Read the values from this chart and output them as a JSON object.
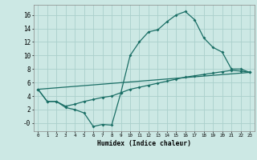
{
  "xlabel": "Humidex (Indice chaleur)",
  "bg_color": "#cce8e4",
  "grid_color": "#aad0cc",
  "line_color": "#1a6e65",
  "xlim": [
    -0.5,
    23.5
  ],
  "ylim": [
    -1.2,
    17.5
  ],
  "yticks": [
    0,
    2,
    4,
    6,
    8,
    10,
    12,
    14,
    16
  ],
  "ytick_labels": [
    "-0",
    "2",
    "4",
    "6",
    "8",
    "10",
    "12",
    "14",
    "16"
  ],
  "series1_x": [
    0,
    1,
    2,
    3,
    4,
    5,
    6,
    7,
    8,
    9,
    10,
    11,
    12,
    13,
    14,
    15,
    16,
    17,
    18,
    19,
    20,
    21,
    22,
    23
  ],
  "series1_y": [
    5.0,
    3.2,
    3.2,
    2.3,
    2.0,
    1.5,
    -0.5,
    -0.2,
    -0.3,
    4.5,
    10.0,
    12.0,
    13.5,
    13.8,
    15.0,
    16.0,
    16.5,
    15.3,
    12.6,
    11.2,
    10.5,
    8.0,
    8.0,
    7.5
  ],
  "series2_x": [
    0,
    23
  ],
  "series2_y": [
    5.0,
    7.5
  ],
  "series3_x": [
    0,
    1,
    2,
    3,
    4,
    5,
    6,
    7,
    8,
    9,
    10,
    11,
    12,
    13,
    14,
    15,
    16,
    17,
    18,
    19,
    20,
    21,
    22,
    23
  ],
  "series3_y": [
    5.0,
    3.2,
    3.2,
    2.5,
    2.8,
    3.2,
    3.5,
    3.8,
    4.0,
    4.5,
    5.0,
    5.3,
    5.6,
    5.9,
    6.2,
    6.5,
    6.8,
    7.0,
    7.2,
    7.4,
    7.6,
    7.8,
    7.7,
    7.5
  ]
}
